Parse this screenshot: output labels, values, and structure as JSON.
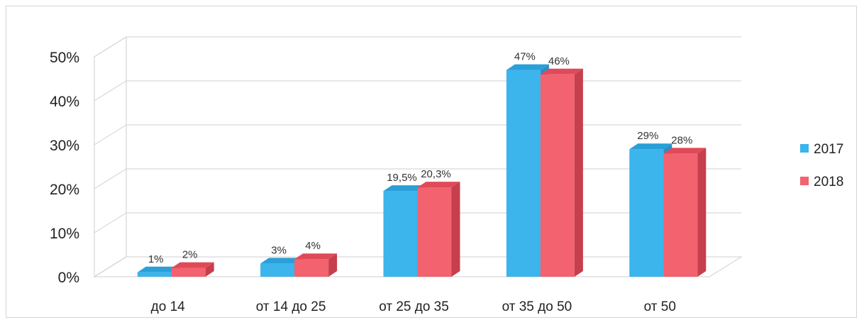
{
  "chart_data": {
    "type": "bar",
    "categories": [
      "до 14",
      "от 14 до 25",
      "от 25 до 35",
      "от 35 до 50",
      "от 50"
    ],
    "series": [
      {
        "name": "2017",
        "values": [
          1,
          3,
          19.5,
          47,
          29
        ],
        "labels": [
          "1%",
          "3%",
          "19,5%",
          "47%",
          "29%"
        ],
        "color": "#3cb4ec",
        "top_color": "#2a9fd8",
        "side_color": "#2a90c8"
      },
      {
        "name": "2018",
        "values": [
          2,
          4,
          20.3,
          46,
          28
        ],
        "labels": [
          "2%",
          "4%",
          "20,3%",
          "46%",
          "28%"
        ],
        "color": "#f2626f",
        "top_color": "#e04a58",
        "side_color": "#c63f4c"
      }
    ],
    "y_ticks": [
      "0%",
      "10%",
      "20%",
      "30%",
      "40%",
      "50%"
    ],
    "ylim": [
      0,
      50
    ],
    "grid": true,
    "legend_position": "right",
    "three_d": true
  }
}
